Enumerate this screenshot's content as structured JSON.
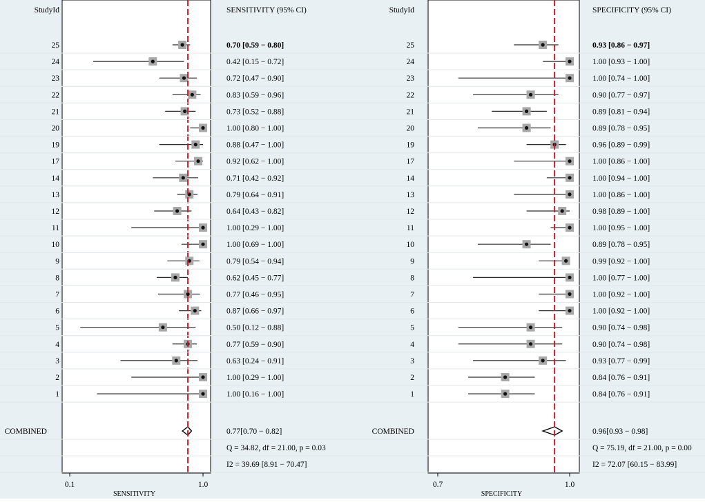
{
  "colors": {
    "background": "#e8f0f3",
    "panel": "#ffffff",
    "ci_line": "#2b2b2b",
    "marker_box": "#a8a8a8",
    "marker_dot": "#111111",
    "reference_line": "#c0202a",
    "row_line": "#e3e7e9"
  },
  "chart_data": [
    {
      "type": "forest",
      "panel": "left",
      "column_header_study": "StudyId",
      "column_header_estimate": "SENSITIVITY (95% CI)",
      "xlabel": "SENSITIVITY",
      "xscale": "log",
      "xlim": [
        0.09,
        1.06
      ],
      "ticks": [
        {
          "value": 0.1,
          "label": "0.1"
        },
        {
          "value": 1.0,
          "label": "1.0"
        }
      ],
      "reference_value": 0.77,
      "studies": [
        {
          "id": "25",
          "est": 0.7,
          "lo": 0.59,
          "hi": 0.8,
          "label": "0.70 [0.59 − 0.80]"
        },
        {
          "id": "24",
          "est": 0.42,
          "lo": 0.15,
          "hi": 0.72,
          "label": "0.42 [0.15 − 0.72]"
        },
        {
          "id": "23",
          "est": 0.72,
          "lo": 0.47,
          "hi": 0.9,
          "label": "0.72 [0.47 − 0.90]"
        },
        {
          "id": "22",
          "est": 0.83,
          "lo": 0.59,
          "hi": 0.96,
          "label": "0.83 [0.59 − 0.96]"
        },
        {
          "id": "21",
          "est": 0.73,
          "lo": 0.52,
          "hi": 0.88,
          "label": "0.73 [0.52 − 0.88]"
        },
        {
          "id": "20",
          "est": 1.0,
          "lo": 0.8,
          "hi": 1.0,
          "label": "1.00 [0.80 − 1.00]"
        },
        {
          "id": "19",
          "est": 0.88,
          "lo": 0.47,
          "hi": 1.0,
          "label": "0.88 [0.47 − 1.00]"
        },
        {
          "id": "17",
          "est": 0.92,
          "lo": 0.62,
          "hi": 1.0,
          "label": "0.92 [0.62 − 1.00]"
        },
        {
          "id": "14",
          "est": 0.71,
          "lo": 0.42,
          "hi": 0.92,
          "label": "0.71 [0.42 − 0.92]"
        },
        {
          "id": "13",
          "est": 0.79,
          "lo": 0.64,
          "hi": 0.91,
          "label": "0.79 [0.64 − 0.91]"
        },
        {
          "id": "12",
          "est": 0.64,
          "lo": 0.43,
          "hi": 0.82,
          "label": "0.64 [0.43 − 0.82]"
        },
        {
          "id": "11",
          "est": 1.0,
          "lo": 0.29,
          "hi": 1.0,
          "label": "1.00 [0.29 − 1.00]"
        },
        {
          "id": "10",
          "est": 1.0,
          "lo": 0.69,
          "hi": 1.0,
          "label": "1.00 [0.69 − 1.00]"
        },
        {
          "id": "9",
          "est": 0.79,
          "lo": 0.54,
          "hi": 0.94,
          "label": "0.79 [0.54 − 0.94]"
        },
        {
          "id": "8",
          "est": 0.62,
          "lo": 0.45,
          "hi": 0.77,
          "label": "0.62 [0.45 − 0.77]"
        },
        {
          "id": "7",
          "est": 0.77,
          "lo": 0.46,
          "hi": 0.95,
          "label": "0.77 [0.46 − 0.95]"
        },
        {
          "id": "6",
          "est": 0.87,
          "lo": 0.66,
          "hi": 0.97,
          "label": "0.87 [0.66 − 0.97]"
        },
        {
          "id": "5",
          "est": 0.5,
          "lo": 0.12,
          "hi": 0.88,
          "label": "0.50 [0.12 − 0.88]"
        },
        {
          "id": "4",
          "est": 0.77,
          "lo": 0.59,
          "hi": 0.9,
          "label": "0.77 [0.59 − 0.90]"
        },
        {
          "id": "3",
          "est": 0.63,
          "lo": 0.24,
          "hi": 0.91,
          "label": "0.63 [0.24 − 0.91]"
        },
        {
          "id": "2",
          "est": 1.0,
          "lo": 0.29,
          "hi": 1.0,
          "label": "1.00 [0.29 − 1.00]"
        },
        {
          "id": "1",
          "est": 1.0,
          "lo": 0.16,
          "hi": 1.0,
          "label": "1.00 [0.16 − 1.00]"
        }
      ],
      "combined": {
        "label": "COMBINED",
        "est": 0.77,
        "lo": 0.7,
        "hi": 0.82,
        "text": "0.77[0.70 − 0.82]"
      },
      "stats": [
        "Q = 34.82, df = 21.00, p =  0.03",
        "I2 = 39.69 [8.91 − 70.47]"
      ]
    },
    {
      "type": "forest",
      "panel": "right",
      "column_header_study": "StudyId",
      "column_header_estimate": "SPECIFICITY (95% CI)",
      "xlabel": "SPECIFICITY",
      "xscale": "log",
      "xlim": [
        0.695,
        1.006
      ],
      "ticks": [
        {
          "value": 0.7,
          "label": "0.7"
        },
        {
          "value": 1.0,
          "label": "1.0"
        }
      ],
      "reference_value": 0.96,
      "studies": [
        {
          "id": "25",
          "est": 0.93,
          "lo": 0.86,
          "hi": 0.97,
          "label": "0.93 [0.86 − 0.97]"
        },
        {
          "id": "24",
          "est": 1.0,
          "lo": 0.93,
          "hi": 1.0,
          "label": "1.00 [0.93 − 1.00]"
        },
        {
          "id": "23",
          "est": 1.0,
          "lo": 0.74,
          "hi": 1.0,
          "label": "1.00 [0.74 − 1.00]"
        },
        {
          "id": "22",
          "est": 0.9,
          "lo": 0.77,
          "hi": 0.97,
          "label": "0.90 [0.77 − 0.97]"
        },
        {
          "id": "21",
          "est": 0.89,
          "lo": 0.81,
          "hi": 0.94,
          "label": "0.89 [0.81 − 0.94]"
        },
        {
          "id": "20",
          "est": 0.89,
          "lo": 0.78,
          "hi": 0.95,
          "label": "0.89 [0.78 − 0.95]"
        },
        {
          "id": "19",
          "est": 0.96,
          "lo": 0.89,
          "hi": 0.99,
          "label": "0.96 [0.89 − 0.99]"
        },
        {
          "id": "17",
          "est": 1.0,
          "lo": 0.86,
          "hi": 1.0,
          "label": "1.00 [0.86 − 1.00]"
        },
        {
          "id": "14",
          "est": 1.0,
          "lo": 0.94,
          "hi": 1.0,
          "label": "1.00 [0.94 − 1.00]"
        },
        {
          "id": "13",
          "est": 1.0,
          "lo": 0.86,
          "hi": 1.0,
          "label": "1.00 [0.86 − 1.00]"
        },
        {
          "id": "12",
          "est": 0.98,
          "lo": 0.89,
          "hi": 1.0,
          "label": "0.98 [0.89 − 1.00]"
        },
        {
          "id": "11",
          "est": 1.0,
          "lo": 0.95,
          "hi": 1.0,
          "label": "1.00 [0.95 − 1.00]"
        },
        {
          "id": "10",
          "est": 0.89,
          "lo": 0.78,
          "hi": 0.95,
          "label": "0.89 [0.78 − 0.95]"
        },
        {
          "id": "9",
          "est": 0.99,
          "lo": 0.92,
          "hi": 1.0,
          "label": "0.99 [0.92 − 1.00]"
        },
        {
          "id": "8",
          "est": 1.0,
          "lo": 0.77,
          "hi": 1.0,
          "label": "1.00 [0.77 − 1.00]"
        },
        {
          "id": "7",
          "est": 1.0,
          "lo": 0.92,
          "hi": 1.0,
          "label": "1.00 [0.92 − 1.00]"
        },
        {
          "id": "6",
          "est": 1.0,
          "lo": 0.92,
          "hi": 1.0,
          "label": "1.00 [0.92 − 1.00]"
        },
        {
          "id": "5",
          "est": 0.9,
          "lo": 0.74,
          "hi": 0.98,
          "label": "0.90 [0.74 − 0.98]"
        },
        {
          "id": "4",
          "est": 0.9,
          "lo": 0.74,
          "hi": 0.98,
          "label": "0.90 [0.74 − 0.98]"
        },
        {
          "id": "3",
          "est": 0.93,
          "lo": 0.77,
          "hi": 0.99,
          "label": "0.93 [0.77 − 0.99]"
        },
        {
          "id": "2",
          "est": 0.84,
          "lo": 0.76,
          "hi": 0.91,
          "label": "0.84 [0.76 − 0.91]"
        },
        {
          "id": "1",
          "est": 0.84,
          "lo": 0.76,
          "hi": 0.91,
          "label": "0.84 [0.76 − 0.91]"
        }
      ],
      "combined": {
        "label": "COMBINED",
        "est": 0.96,
        "lo": 0.93,
        "hi": 0.98,
        "text": "0.96[0.93 − 0.98]"
      },
      "stats": [
        "Q = 75.19, df = 21.00, p =  0.00",
        "I2 = 72.07 [60.15 − 83.99]"
      ]
    }
  ]
}
